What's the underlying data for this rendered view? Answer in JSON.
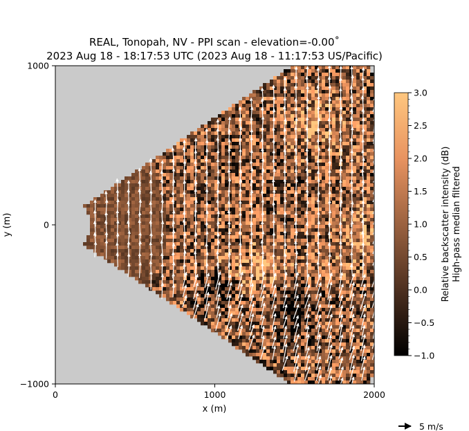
{
  "chart_data": {
    "type": "heatmap",
    "title_line1": "REAL, Tonopah, NV - PPI scan - elevation=-0.00˚",
    "title_line2": "2023 Aug 18 - 18:17:53 UTC (2023 Aug 18 - 11:17:53 US/Pacific)",
    "xlabel": "x (m)",
    "ylabel": "y (m)",
    "xlim": [
      0,
      2000
    ],
    "ylim": [
      -1000,
      1000
    ],
    "x_ticks": [
      "0",
      "1000",
      "2000"
    ],
    "y_ticks": [
      "−1000",
      "0",
      "1000"
    ],
    "x_tick_values": [
      0,
      1000,
      2000
    ],
    "y_tick_values": [
      -1000,
      0,
      1000
    ],
    "scan_sector": {
      "min_range_m": 215,
      "max_range_m": 2200,
      "azimuth_half_width_deg": 34,
      "outside_color": "#cacaca"
    },
    "colorbar": {
      "label_line1": "Relative backscatter intensity (dB)",
      "label_line2": "High-pass median filtered",
      "vmin": -1.0,
      "vmax": 3.0,
      "ticks": [
        "3.0",
        "2.5",
        "2.0",
        "1.5",
        "1.0",
        "0.5",
        "0.0",
        "−0.5",
        "−1.0"
      ],
      "tick_values": [
        3.0,
        2.5,
        2.0,
        1.5,
        1.0,
        0.5,
        0.0,
        -0.5,
        -1.0
      ],
      "colormap": "copper"
    },
    "wind_vectors": {
      "dominant_direction": "north",
      "typical_speed_m_s": 6
    },
    "quiver_key": {
      "label": "5 m/s",
      "speed_m_s": 5
    }
  }
}
